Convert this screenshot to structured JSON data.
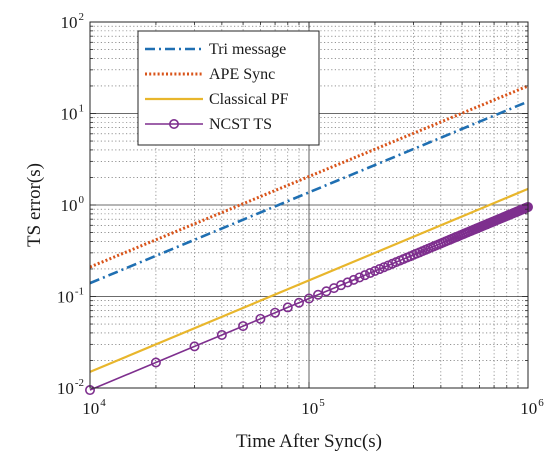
{
  "chart_data": {
    "type": "line",
    "x_scale": "log",
    "y_scale": "log",
    "xlabel": "Time After Sync(s)",
    "ylabel": "TS error(s)",
    "xlim": [
      10000,
      1000000
    ],
    "ylim": [
      0.01,
      100
    ],
    "x_ticks": [
      {
        "base": "10",
        "exp": "4",
        "value": 10000
      },
      {
        "base": "10",
        "exp": "5",
        "value": 100000
      },
      {
        "base": "10",
        "exp": "6",
        "value": 1000000
      }
    ],
    "y_ticks": [
      {
        "base": "10",
        "exp": "-2",
        "value": 0.01
      },
      {
        "base": "10",
        "exp": "-1",
        "value": 0.1
      },
      {
        "base": "10",
        "exp": "0",
        "value": 1
      },
      {
        "base": "10",
        "exp": "1",
        "value": 10
      },
      {
        "base": "10",
        "exp": "2",
        "value": 100
      }
    ],
    "grid": true,
    "legend_position": "top-left",
    "series": [
      {
        "name": "Tri message",
        "color": "#1f6fb2",
        "style": "dashdot",
        "marker": "none",
        "x": [
          10000,
          1000000
        ],
        "y": [
          0.14,
          13.5
        ]
      },
      {
        "name": "APE Sync",
        "color": "#d9541a",
        "style": "dotted",
        "marker": "none",
        "x": [
          10000,
          1000000
        ],
        "y": [
          0.21,
          20
        ]
      },
      {
        "name": "Classical PF",
        "color": "#e8b62c",
        "style": "solid",
        "marker": "none",
        "x": [
          10000,
          1000000
        ],
        "y": [
          0.015,
          1.5
        ]
      },
      {
        "name": "NCST TS",
        "color": "#7e2f8e",
        "style": "solid",
        "marker": "circle",
        "x": [
          10000,
          20000,
          30000,
          40000,
          50000,
          60000,
          70000,
          80000,
          90000,
          100000,
          110000,
          120000,
          130000,
          140000,
          150000,
          160000,
          170000,
          180000,
          190000,
          200000,
          210000,
          220000,
          230000,
          240000,
          250000,
          260000,
          270000,
          280000,
          290000,
          300000,
          310000,
          320000,
          330000,
          340000,
          350000,
          360000,
          370000,
          380000,
          390000,
          400000,
          410000,
          420000,
          430000,
          440000,
          450000,
          460000,
          470000,
          480000,
          490000,
          500000,
          510000,
          520000,
          530000,
          540000,
          550000,
          560000,
          570000,
          580000,
          590000,
          600000,
          610000,
          620000,
          630000,
          640000,
          650000,
          660000,
          670000,
          680000,
          690000,
          700000,
          710000,
          720000,
          730000,
          740000,
          750000,
          760000,
          770000,
          780000,
          790000,
          800000,
          810000,
          820000,
          830000,
          840000,
          850000,
          860000,
          870000,
          880000,
          890000,
          900000,
          910000,
          920000,
          930000,
          940000,
          950000,
          960000,
          970000,
          980000,
          990000,
          1000000
        ],
        "y": [
          0.0095,
          0.019,
          0.0285,
          0.038,
          0.0475,
          0.057,
          0.0665,
          0.076,
          0.0855,
          0.095,
          0.1045,
          0.114,
          0.1235,
          0.133,
          0.1425,
          0.152,
          0.1615,
          0.171,
          0.1805,
          0.19,
          0.1995,
          0.209,
          0.2185,
          0.228,
          0.2375,
          0.247,
          0.2565,
          0.266,
          0.2755,
          0.285,
          0.2945,
          0.304,
          0.3135,
          0.323,
          0.3325,
          0.342,
          0.3515,
          0.361,
          0.3705,
          0.38,
          0.3895,
          0.399,
          0.4085,
          0.418,
          0.4275,
          0.437,
          0.4465,
          0.456,
          0.4655,
          0.475,
          0.4845,
          0.494,
          0.5035,
          0.513,
          0.5225,
          0.532,
          0.5415,
          0.551,
          0.5605,
          0.57,
          0.5795,
          0.589,
          0.5985,
          0.608,
          0.6175,
          0.627,
          0.6365,
          0.646,
          0.6555,
          0.665,
          0.6745,
          0.684,
          0.6935,
          0.703,
          0.7125,
          0.722,
          0.7315,
          0.741,
          0.7505,
          0.76,
          0.7695,
          0.779,
          0.7885,
          0.798,
          0.8075,
          0.817,
          0.8265,
          0.836,
          0.8455,
          0.855,
          0.8645,
          0.874,
          0.8835,
          0.893,
          0.9025,
          0.912,
          0.9215,
          0.931,
          0.9405,
          0.95
        ]
      }
    ]
  }
}
